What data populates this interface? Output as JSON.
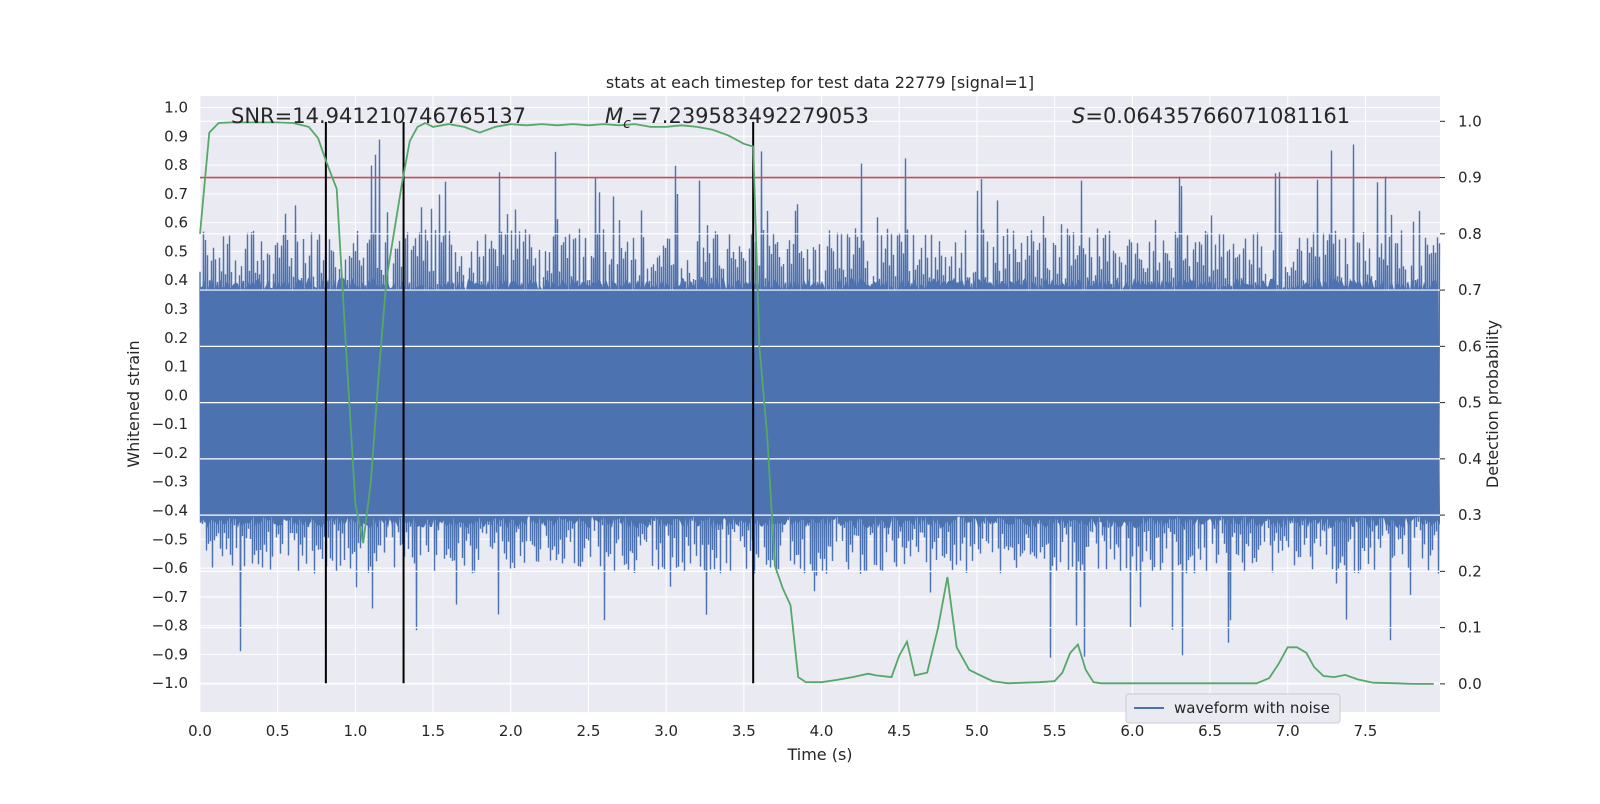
{
  "chart_data": {
    "type": "line",
    "title": "stats at each timestep for test data 22779 [signal=1]",
    "xlabel": "Time (s)",
    "ylabel_left": "Whitened strain",
    "ylabel_right": "Detection probability",
    "xlim": [
      0.0,
      7.98
    ],
    "ylim_left": [
      -1.1,
      1.04
    ],
    "ylim_right": [
      -0.05,
      1.045
    ],
    "x_ticks": [
      "0.0",
      "0.5",
      "1.0",
      "1.5",
      "2.0",
      "2.5",
      "3.0",
      "3.5",
      "4.0",
      "4.5",
      "5.0",
      "5.5",
      "6.0",
      "6.5",
      "7.0",
      "7.5"
    ],
    "y_left_ticks": [
      "1.0",
      "0.9",
      "0.8",
      "0.7",
      "0.6",
      "0.5",
      "0.4",
      "0.3",
      "0.2",
      "0.1",
      "0.0",
      "-0.1",
      "-0.2",
      "-0.3",
      "-0.4",
      "-0.5",
      "-0.6",
      "-0.7",
      "-0.8",
      "-0.9",
      "-1.0"
    ],
    "y_right_ticks": [
      "1.0",
      "0.9",
      "0.8",
      "0.7",
      "0.6",
      "0.5",
      "0.4",
      "0.3",
      "0.2",
      "0.1",
      "0.0"
    ],
    "annotations": {
      "snr": "SNR=14.941210746765137",
      "mc_symbol": "M",
      "mc_sub": "c",
      "mc_value": "=7.239583492279053",
      "s_symbol": "S",
      "s_value": "=0.06435766071081161"
    },
    "threshold": {
      "value": 0.9,
      "axis": "right",
      "color": "#c44e52"
    },
    "vertical_lines": [
      0.81,
      1.31,
      3.56
    ],
    "legend": {
      "label": "waveform with noise",
      "location": "lower-right"
    },
    "series": [
      {
        "name": "waveform with noise",
        "axis": "left",
        "color": "#4c72b0",
        "typical_range": [
          -0.42,
          0.36
        ],
        "peak_max": 0.94,
        "peak_min": -0.99
      },
      {
        "name": "Detection probability",
        "axis": "right",
        "color": "#55a868",
        "x": [
          0.0,
          0.06,
          0.12,
          0.2,
          0.3,
          0.4,
          0.5,
          0.6,
          0.7,
          0.76,
          0.81,
          0.88,
          0.95,
          1.0,
          1.05,
          1.1,
          1.15,
          1.2,
          1.3,
          1.35,
          1.4,
          1.45,
          1.5,
          1.6,
          1.7,
          1.75,
          1.8,
          1.9,
          2.0,
          2.1,
          2.2,
          2.3,
          2.4,
          2.5,
          2.6,
          2.7,
          2.8,
          2.9,
          3.0,
          3.1,
          3.2,
          3.3,
          3.4,
          3.5,
          3.56,
          3.6,
          3.65,
          3.7,
          3.75,
          3.8,
          3.85,
          3.9,
          4.0,
          4.1,
          4.2,
          4.3,
          4.35,
          4.45,
          4.5,
          4.55,
          4.6,
          4.68,
          4.75,
          4.81,
          4.87,
          4.95,
          5.0,
          5.1,
          5.2,
          5.3,
          5.4,
          5.5,
          5.55,
          5.6,
          5.65,
          5.7,
          5.75,
          5.8,
          5.9,
          6.0,
          6.2,
          6.4,
          6.6,
          6.8,
          6.88,
          6.94,
          7.0,
          7.06,
          7.12,
          7.17,
          7.23,
          7.3,
          7.37,
          7.45,
          7.55,
          7.7,
          7.8,
          7.94
        ],
        "values": [
          0.8,
          0.98,
          0.997,
          0.998,
          0.998,
          0.998,
          0.998,
          0.997,
          0.99,
          0.97,
          0.93,
          0.88,
          0.55,
          0.32,
          0.25,
          0.36,
          0.55,
          0.72,
          0.89,
          0.965,
          0.99,
          0.997,
          0.99,
          0.995,
          0.99,
          0.985,
          0.98,
          0.99,
          0.995,
          0.993,
          0.995,
          0.993,
          0.995,
          0.993,
          0.995,
          0.993,
          0.995,
          0.99,
          0.99,
          0.993,
          0.99,
          0.985,
          0.975,
          0.96,
          0.955,
          0.6,
          0.44,
          0.21,
          0.17,
          0.14,
          0.012,
          0.003,
          0.003,
          0.007,
          0.012,
          0.018,
          0.015,
          0.012,
          0.05,
          0.075,
          0.015,
          0.02,
          0.1,
          0.19,
          0.065,
          0.025,
          0.018,
          0.005,
          0.001,
          0.002,
          0.003,
          0.005,
          0.02,
          0.055,
          0.07,
          0.025,
          0.003,
          0.001,
          0.001,
          0.001,
          0.001,
          0.001,
          0.001,
          0.001,
          0.01,
          0.035,
          0.065,
          0.065,
          0.055,
          0.03,
          0.014,
          0.012,
          0.016,
          0.008,
          0.002,
          0.001,
          0.0,
          0.0
        ]
      }
    ]
  }
}
